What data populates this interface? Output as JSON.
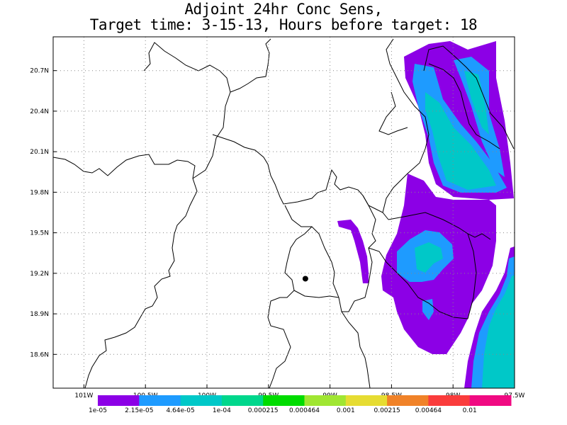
{
  "title": {
    "line1": "Adjoint 24hr Conc Sens,",
    "line2": "Target time: 3-15-13, Hours before target: 18"
  },
  "map": {
    "lat_range": [
      18.35,
      20.95
    ],
    "lon_range": [
      -101.25,
      -97.5
    ],
    "lat_ticks": [
      "20.7N",
      "20.4N",
      "20.1N",
      "19.8N",
      "19.5N",
      "19.2N",
      "18.9N",
      "18.6N"
    ],
    "lon_ticks": [
      "101W",
      "100.5W",
      "100W",
      "99.5W",
      "99W",
      "98.5W",
      "98W",
      "97.5W"
    ],
    "marker": {
      "lat": 19.16,
      "lon": -99.2
    },
    "grid": "dotted"
  },
  "colorbar": {
    "labels": [
      "1e-05",
      "2.15e-05",
      "4.64e-05",
      "1e-04",
      "0.000215",
      "0.000464",
      "0.001",
      "0.00215",
      "0.00464",
      "0.01"
    ],
    "colors": [
      "#8c00e6",
      "#1e9bff",
      "#00c8c8",
      "#00d78c",
      "#00dc00",
      "#a0e632",
      "#e6dc32",
      "#f08228",
      "#fa3c3c",
      "#f00a82"
    ]
  },
  "colors": {
    "boundary": "#000000",
    "marker": "#000000"
  }
}
